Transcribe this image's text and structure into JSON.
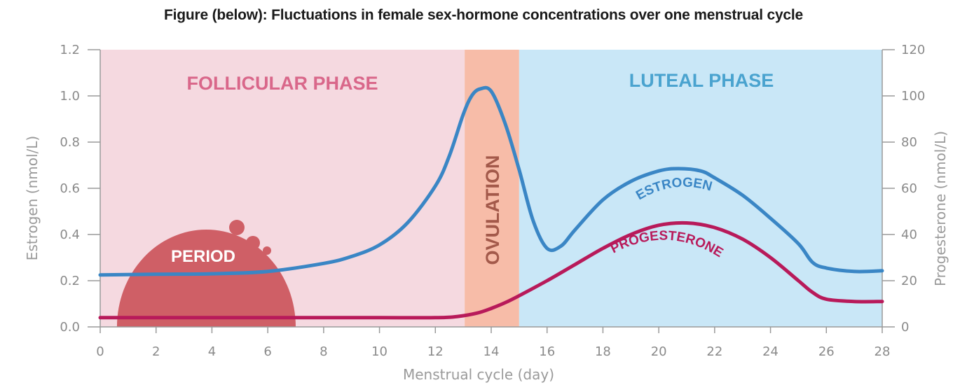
{
  "title": "Figure (below): Fluctuations in female sex-hormone concentrations over one menstrual cycle",
  "chart_data": {
    "type": "line",
    "xlabel": "Menstrual cycle (day)",
    "ylabel_left": "Estrogen (nmol/L)",
    "ylabel_right": "Progesterone (nmol/L)",
    "xlim": [
      0,
      28
    ],
    "ylim_left": [
      0,
      1.2
    ],
    "ylim_right": [
      0,
      120
    ],
    "x_ticks": [
      0,
      2,
      4,
      6,
      8,
      10,
      12,
      14,
      16,
      18,
      20,
      22,
      24,
      26,
      28
    ],
    "y_left_ticks": [
      "0.0",
      "0.2",
      "0.4",
      "0.6",
      "0.8",
      "1.0",
      "1.2"
    ],
    "y_right_ticks": [
      "0",
      "20",
      "40",
      "60",
      "80",
      "100",
      "120"
    ],
    "phases": [
      {
        "label": "FOLLICULAR PHASE",
        "start": 0,
        "end": 13.05,
        "color": "#f5d9e0",
        "text_color": "#d9678a"
      },
      {
        "label": "OVULATION",
        "start": 13.05,
        "end": 15,
        "color": "#f7bca8",
        "text_color": "#a3594a"
      },
      {
        "label": "LUTEAL PHASE",
        "start": 15,
        "end": 28,
        "color": "#c9e7f7",
        "text_color": "#4aa3cf"
      }
    ],
    "period": {
      "label": "PERIOD",
      "start": 0.6,
      "end": 7,
      "color": "#cf5f66"
    },
    "series": [
      {
        "name": "ESTROGEN",
        "axis": "left",
        "color": "#3a86c5",
        "x": [
          0,
          2,
          4,
          6,
          8,
          9,
          10,
          11,
          12,
          12.5,
          13,
          13.3,
          13.6,
          14,
          14.5,
          15,
          15.5,
          16,
          16.5,
          17,
          18,
          19,
          20,
          20.7,
          21.5,
          22,
          23,
          24,
          25,
          25.5,
          26,
          27,
          28
        ],
        "values": [
          0.225,
          0.228,
          0.23,
          0.24,
          0.275,
          0.305,
          0.355,
          0.45,
          0.61,
          0.74,
          0.92,
          1.0,
          1.03,
          1.02,
          0.88,
          0.68,
          0.46,
          0.34,
          0.35,
          0.42,
          0.55,
          0.63,
          0.675,
          0.685,
          0.675,
          0.645,
          0.57,
          0.47,
          0.36,
          0.28,
          0.255,
          0.24,
          0.243
        ]
      },
      {
        "name": "PROGESTERONE",
        "axis": "right",
        "color": "#b81a5a",
        "x": [
          0,
          2,
          4,
          6,
          8,
          10,
          12,
          12.8,
          13.5,
          14,
          14.5,
          15,
          16,
          17,
          18,
          19,
          20,
          21,
          22,
          23,
          24,
          25,
          25.5,
          26,
          27,
          28
        ],
        "values": [
          4,
          4,
          4,
          4,
          4,
          4,
          4,
          4.5,
          6,
          8,
          10.5,
          13.5,
          20,
          27,
          34,
          40,
          44,
          45,
          43,
          38,
          30,
          20,
          15,
          12,
          11,
          11
        ]
      }
    ],
    "grid": false
  }
}
